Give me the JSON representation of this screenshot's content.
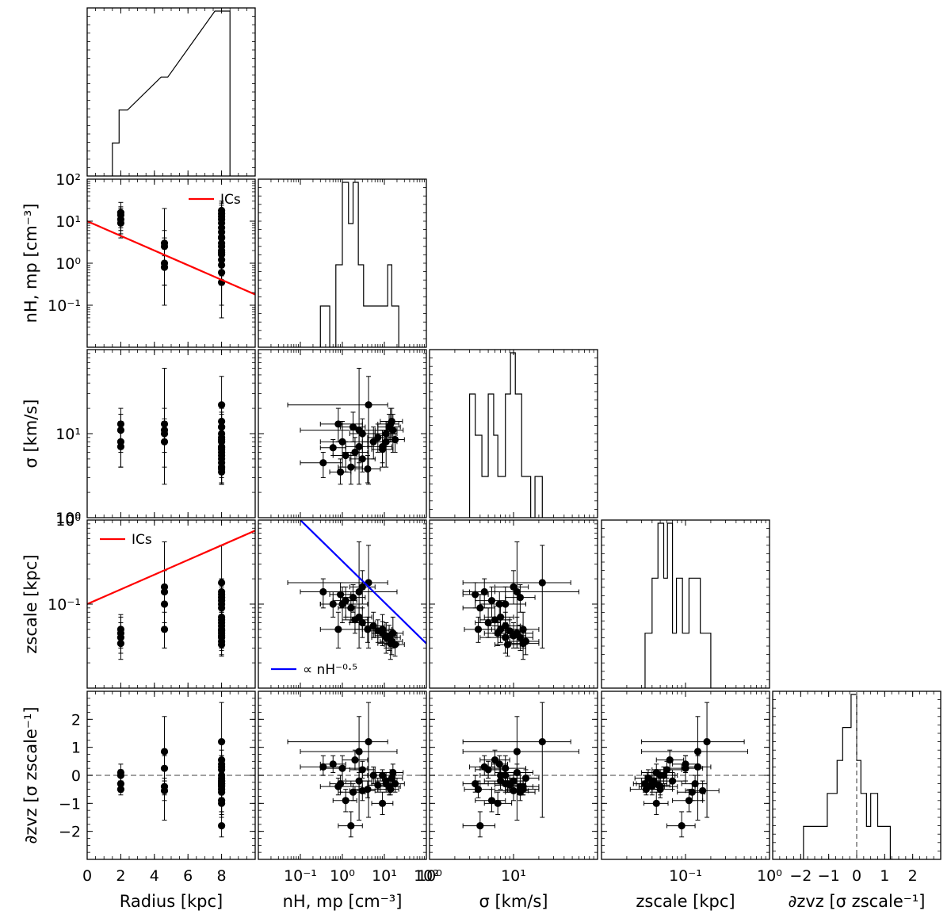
{
  "chart_data": {
    "type": "corner",
    "variables": [
      {
        "key": "radius",
        "label": "Radius [kpc]",
        "scale": "linear",
        "lim": [
          0,
          10
        ],
        "ticks": [
          0,
          2,
          4,
          6,
          8
        ],
        "tick_labels": [
          "0",
          "2",
          "4",
          "6",
          "8"
        ]
      },
      {
        "key": "nH",
        "label": "nH, mp [cm⁻³]",
        "scale": "log",
        "lim": [
          0.01,
          100
        ],
        "ticks": [
          0.1,
          1,
          10,
          100
        ],
        "tick_labels": [
          "10⁻¹",
          "10⁰",
          "10¹",
          "10²"
        ]
      },
      {
        "key": "sigma",
        "label": "σ [km/s]",
        "scale": "log",
        "lim": [
          1,
          100
        ],
        "ticks": [
          1,
          10
        ],
        "tick_labels": [
          "10⁰",
          "10¹"
        ]
      },
      {
        "key": "zscale",
        "label": "zscale [kpc]",
        "scale": "log",
        "lim": [
          0.01,
          1
        ],
        "ticks": [
          0.1,
          1
        ],
        "tick_labels": [
          "10⁻¹",
          "10⁰"
        ]
      },
      {
        "key": "dvz",
        "label": "∂zvz [σ zscale⁻¹]",
        "scale": "linear",
        "lim": [
          -3,
          3
        ],
        "ticks": [
          -2,
          -1,
          0,
          1,
          2
        ],
        "tick_labels": [
          "−2",
          "−1",
          "0",
          "1",
          "2"
        ]
      }
    ],
    "y_axis_labels": {
      "nH": "nH, mp [cm⁻³]",
      "sigma": "σ [km/s]",
      "zscale": "zscale [kpc]",
      "dvz": "∂zvz [σ zscale⁻¹]"
    },
    "y_tick_labels": {
      "nH": [
        "10⁻¹",
        "10⁰",
        "10¹",
        "10²"
      ],
      "sigma": [
        "10¹",
        "10⁰"
      ],
      "zscale": [
        "10⁻¹",
        "10⁰"
      ],
      "dvz": [
        "−2",
        "−1",
        "0",
        "1",
        "2"
      ]
    },
    "points": [
      {
        "radius": 2,
        "nH": 16,
        "sigma": 11,
        "zscale": 0.045,
        "dvz": 0.1,
        "nH_lo": 6,
        "nH_hi": 28,
        "sigma_lo": 6,
        "sigma_hi": 17,
        "zscale_lo": 0.03,
        "zscale_hi": 0.07,
        "dvz_lo": -0.3,
        "dvz_hi": 0.4
      },
      {
        "radius": 2,
        "nH": 11,
        "sigma": 8,
        "zscale": 0.04,
        "dvz": -0.3,
        "nH_lo": 5,
        "nH_hi": 20,
        "sigma_lo": 4,
        "sigma_hi": 14,
        "zscale_lo": 0.026,
        "zscale_hi": 0.06,
        "dvz_lo": -0.6,
        "dvz_hi": 0.0
      },
      {
        "radius": 2,
        "nH": 14,
        "sigma": 13,
        "zscale": 0.034,
        "dvz": -0.5,
        "nH_lo": 7,
        "nH_hi": 22,
        "sigma_lo": 8,
        "sigma_hi": 20,
        "zscale_lo": 0.022,
        "zscale_hi": 0.05,
        "dvz_lo": -0.7,
        "dvz_hi": -0.2
      },
      {
        "radius": 2,
        "nH": 9,
        "sigma": 7,
        "zscale": 0.05,
        "dvz": 0.0,
        "nH_lo": 4,
        "nH_hi": 15,
        "sigma_lo": 4,
        "sigma_hi": 11,
        "zscale_lo": 0.035,
        "zscale_hi": 0.075,
        "dvz_lo": -0.2,
        "dvz_hi": 0.2
      },
      {
        "radius": 4.6,
        "nH": 2.5,
        "sigma": 11,
        "zscale": 0.14,
        "dvz": 0.85,
        "nH_lo": 0.1,
        "nH_hi": 20,
        "sigma_lo": 2.5,
        "sigma_hi": 60,
        "zscale_lo": 0.03,
        "zscale_hi": 0.55,
        "dvz_lo": -1.6,
        "dvz_hi": 2.1
      },
      {
        "radius": 4.6,
        "nH": 1.0,
        "sigma": 8,
        "zscale": 0.1,
        "dvz": 0.25,
        "nH_lo": 0.3,
        "nH_hi": 4,
        "sigma_lo": 4,
        "sigma_hi": 14,
        "zscale_lo": 0.06,
        "zscale_hi": 0.16,
        "dvz_lo": -0.2,
        "dvz_hi": 0.7
      },
      {
        "radius": 4.6,
        "nH": 0.8,
        "sigma": 13,
        "zscale": 0.05,
        "dvz": -0.4,
        "nH_lo": 0.3,
        "nH_hi": 3,
        "sigma_lo": 8,
        "sigma_hi": 20,
        "zscale_lo": 0.03,
        "zscale_hi": 0.08,
        "dvz_lo": -0.7,
        "dvz_hi": -0.1
      },
      {
        "radius": 4.6,
        "nH": 3.0,
        "sigma": 10,
        "zscale": 0.16,
        "dvz": -0.55,
        "nH_lo": 1.5,
        "nH_hi": 6,
        "sigma_lo": 6,
        "sigma_hi": 15,
        "zscale_lo": 0.1,
        "zscale_hi": 0.25,
        "dvz_lo": -0.9,
        "dvz_hi": -0.2
      },
      {
        "radius": 8,
        "nH": 4.2,
        "sigma": 22,
        "zscale": 0.18,
        "dvz": 1.2,
        "nH_lo": 0.05,
        "nH_hi": 12,
        "sigma_lo": 2.5,
        "sigma_hi": 48,
        "zscale_lo": 0.03,
        "zscale_hi": 0.5,
        "dvz_lo": -1.5,
        "dvz_hi": 2.6
      },
      {
        "radius": 8,
        "nH": 0.35,
        "sigma": 4.5,
        "zscale": 0.14,
        "dvz": 0.3,
        "nH_lo": 0.1,
        "nH_hi": 1.0,
        "sigma_lo": 3,
        "sigma_hi": 6,
        "zscale_lo": 0.09,
        "zscale_hi": 0.2,
        "dvz_lo": 0.0,
        "dvz_hi": 0.7
      },
      {
        "radius": 8,
        "nH": 0.9,
        "sigma": 3.5,
        "zscale": 0.13,
        "dvz": -0.3,
        "nH_lo": 0.5,
        "nH_hi": 1.6,
        "sigma_lo": 2.5,
        "sigma_hi": 5,
        "zscale_lo": 0.09,
        "zscale_hi": 0.18,
        "dvz_lo": -0.6,
        "dvz_hi": 0.0
      },
      {
        "radius": 8,
        "nH": 1.2,
        "sigma": 5.5,
        "zscale": 0.11,
        "dvz": -0.9,
        "nH_lo": 0.6,
        "nH_hi": 2.2,
        "sigma_lo": 3.5,
        "sigma_hi": 8,
        "zscale_lo": 0.07,
        "zscale_hi": 0.16,
        "dvz_lo": -1.3,
        "dvz_hi": -0.5
      },
      {
        "radius": 8,
        "nH": 1.6,
        "sigma": 4.0,
        "zscale": 0.09,
        "dvz": -1.8,
        "nH_lo": 0.8,
        "nH_hi": 3,
        "sigma_lo": 2.5,
        "sigma_hi": 6,
        "zscale_lo": 0.06,
        "zscale_hi": 0.13,
        "dvz_lo": -2.2,
        "dvz_hi": -1.3
      },
      {
        "radius": 8,
        "nH": 2.0,
        "sigma": 6.0,
        "zscale": 0.065,
        "dvz": 0.55,
        "nH_lo": 1.0,
        "nH_hi": 4,
        "sigma_lo": 4,
        "sigma_hi": 9,
        "zscale_lo": 0.045,
        "zscale_hi": 0.095,
        "dvz_lo": 0.2,
        "dvz_hi": 0.9
      },
      {
        "radius": 8,
        "nH": 2.5,
        "sigma": 7.0,
        "zscale": 0.07,
        "dvz": -0.2,
        "nH_lo": 1.2,
        "nH_hi": 5,
        "sigma_lo": 4.5,
        "sigma_hi": 10,
        "zscale_lo": 0.05,
        "zscale_hi": 0.1,
        "dvz_lo": -0.5,
        "dvz_hi": 0.1
      },
      {
        "radius": 8,
        "nH": 3.0,
        "sigma": 5.0,
        "zscale": 0.06,
        "dvz": 0.2,
        "nH_lo": 1.5,
        "nH_hi": 6,
        "sigma_lo": 3.5,
        "sigma_hi": 7,
        "zscale_lo": 0.04,
        "zscale_hi": 0.09,
        "dvz_lo": -0.1,
        "dvz_hi": 0.5
      },
      {
        "radius": 8,
        "nH": 4.0,
        "sigma": 3.8,
        "zscale": 0.05,
        "dvz": -0.5,
        "nH_lo": 2,
        "nH_hi": 8,
        "sigma_lo": 2.6,
        "sigma_hi": 5.5,
        "zscale_lo": 0.035,
        "zscale_hi": 0.07,
        "dvz_lo": -0.8,
        "dvz_hi": -0.2
      },
      {
        "radius": 8,
        "nH": 5.5,
        "sigma": 8.0,
        "zscale": 0.055,
        "dvz": 0.0,
        "nH_lo": 3,
        "nH_hi": 10,
        "sigma_lo": 5,
        "sigma_hi": 12,
        "zscale_lo": 0.04,
        "zscale_hi": 0.08,
        "dvz_lo": -0.3,
        "dvz_hi": 0.3
      },
      {
        "radius": 8,
        "nH": 7.0,
        "sigma": 9.0,
        "zscale": 0.048,
        "dvz": -0.35,
        "nH_lo": 4,
        "nH_hi": 13,
        "sigma_lo": 6,
        "sigma_hi": 13,
        "zscale_lo": 0.035,
        "zscale_hi": 0.065,
        "dvz_lo": -0.6,
        "dvz_hi": -0.1
      },
      {
        "radius": 8,
        "nH": 9.0,
        "sigma": 6.5,
        "zscale": 0.045,
        "dvz": -1.0,
        "nH_lo": 5,
        "nH_hi": 16,
        "sigma_lo": 4.5,
        "sigma_hi": 9.5,
        "zscale_lo": 0.032,
        "zscale_hi": 0.062,
        "dvz_lo": -1.4,
        "dvz_hi": -0.6
      },
      {
        "radius": 8,
        "nH": 11,
        "sigma": 10,
        "zscale": 0.042,
        "dvz": -0.2,
        "nH_lo": 6,
        "nH_hi": 20,
        "sigma_lo": 7,
        "sigma_hi": 14,
        "zscale_lo": 0.03,
        "zscale_hi": 0.06,
        "dvz_lo": -0.5,
        "dvz_hi": 0.1
      },
      {
        "radius": 8,
        "nH": 13,
        "sigma": 12,
        "zscale": 0.04,
        "dvz": -0.4,
        "nH_lo": 7,
        "nH_hi": 24,
        "sigma_lo": 8,
        "sigma_hi": 17,
        "zscale_lo": 0.028,
        "zscale_hi": 0.056,
        "dvz_lo": -0.7,
        "dvz_hi": -0.1
      },
      {
        "radius": 8,
        "nH": 15,
        "sigma": 14,
        "zscale": 0.036,
        "dvz": -0.1,
        "nH_lo": 8,
        "nH_hi": 27,
        "sigma_lo": 9,
        "sigma_hi": 20,
        "zscale_lo": 0.025,
        "zscale_hi": 0.05,
        "dvz_lo": -0.4,
        "dvz_hi": 0.2
      },
      {
        "radius": 8,
        "nH": 18,
        "sigma": 8.5,
        "zscale": 0.033,
        "dvz": -0.3,
        "nH_lo": 10,
        "nH_hi": 30,
        "sigma_lo": 6,
        "sigma_hi": 12,
        "zscale_lo": 0.024,
        "zscale_hi": 0.046,
        "dvz_lo": -0.6,
        "dvz_hi": 0.0
      },
      {
        "radius": 8,
        "nH": 1.8,
        "sigma": 12,
        "zscale": 0.12,
        "dvz": -0.6,
        "nH_lo": 0.9,
        "nH_hi": 3.5,
        "sigma_lo": 8,
        "sigma_hi": 18,
        "zscale_lo": 0.08,
        "zscale_hi": 0.17,
        "dvz_lo": -0.9,
        "dvz_hi": -0.3
      },
      {
        "radius": 8,
        "nH": 0.6,
        "sigma": 6.8,
        "zscale": 0.1,
        "dvz": 0.4,
        "nH_lo": 0.3,
        "nH_hi": 1.2,
        "sigma_lo": 5.5,
        "sigma_hi": 8.5,
        "zscale_lo": 0.07,
        "zscale_hi": 0.14,
        "dvz_lo": 0.1,
        "dvz_hi": 0.7
      }
    ],
    "histograms": {
      "radius": {
        "bins": [
          [
            1.5,
            1.9,
            1
          ],
          [
            1.9,
            2.4,
            2
          ],
          [
            4.4,
            4.8,
            3
          ],
          [
            7.6,
            8.5,
            5
          ]
        ]
      },
      "nH": {
        "bins": [
          [
            0.3,
            0.5,
            1
          ],
          [
            0.5,
            0.7,
            0
          ],
          [
            0.7,
            1.0,
            2
          ],
          [
            1.0,
            1.4,
            4
          ],
          [
            1.4,
            1.8,
            3
          ],
          [
            1.8,
            2.4,
            4
          ],
          [
            2.4,
            3.2,
            2
          ],
          [
            3.2,
            4.4,
            1
          ],
          [
            4.4,
            8.0,
            1
          ],
          [
            8.0,
            12,
            1
          ],
          [
            12,
            15,
            2
          ],
          [
            15,
            22,
            1
          ]
        ]
      },
      "sigma": {
        "bins": [
          [
            3.0,
            3.5,
            3
          ],
          [
            3.5,
            4.2,
            2
          ],
          [
            4.2,
            5.0,
            1
          ],
          [
            5.0,
            5.8,
            3
          ],
          [
            5.8,
            6.5,
            2
          ],
          [
            6.5,
            8.0,
            1
          ],
          [
            8.0,
            9.2,
            3
          ],
          [
            9.2,
            10.5,
            4
          ],
          [
            10.5,
            12.5,
            3
          ],
          [
            12.5,
            16,
            1
          ],
          [
            16,
            18,
            0
          ],
          [
            18,
            22,
            1
          ]
        ]
      },
      "zscale": {
        "bins": [
          [
            0.033,
            0.04,
            1
          ],
          [
            0.04,
            0.047,
            2
          ],
          [
            0.047,
            0.055,
            3
          ],
          [
            0.055,
            0.061,
            2
          ],
          [
            0.061,
            0.07,
            3
          ],
          [
            0.07,
            0.078,
            1
          ],
          [
            0.078,
            0.092,
            2
          ],
          [
            0.092,
            0.11,
            1
          ],
          [
            0.11,
            0.125,
            2
          ],
          [
            0.125,
            0.15,
            2
          ],
          [
            0.15,
            0.165,
            1
          ],
          [
            0.165,
            0.2,
            1
          ]
        ]
      },
      "dvz": {
        "bins": [
          [
            -1.9,
            -1.7,
            1
          ],
          [
            -1.3,
            -1.05,
            1
          ],
          [
            -1.05,
            -0.7,
            2
          ],
          [
            -0.7,
            -0.5,
            3
          ],
          [
            -0.5,
            -0.2,
            4
          ],
          [
            -0.2,
            0.0,
            5
          ],
          [
            0.0,
            0.15,
            3
          ],
          [
            0.15,
            0.35,
            2
          ],
          [
            0.35,
            0.5,
            1
          ],
          [
            0.5,
            0.75,
            2
          ],
          [
            0.75,
            0.95,
            1
          ],
          [
            0.95,
            1.2,
            1
          ]
        ]
      }
    },
    "lines": [
      {
        "panel": [
          "radius",
          "nH"
        ],
        "color": "#ff0000",
        "legend": "ICs",
        "x": [
          0,
          10
        ],
        "y": [
          10,
          0.18
        ]
      },
      {
        "panel": [
          "radius",
          "zscale"
        ],
        "color": "#ff0000",
        "legend": "ICs",
        "x": [
          0,
          10
        ],
        "y": [
          0.1,
          0.75
        ]
      },
      {
        "panel": [
          "nH",
          "zscale"
        ],
        "color": "#0000ff",
        "legend": "∝ nH^-0.5",
        "x": [
          0.1,
          100
        ],
        "y": [
          1.0,
          0.034
        ]
      }
    ],
    "hlines": [
      {
        "var": "dvz",
        "y": 0,
        "color": "#808080",
        "style": "dashed"
      }
    ],
    "vlines": [
      {
        "var": "dvz",
        "x": 0,
        "color": "#808080",
        "style": "dashed"
      }
    ],
    "legend_ics": "ICs",
    "legend_nh": "∝ nH⁻⁰·⁵"
  }
}
